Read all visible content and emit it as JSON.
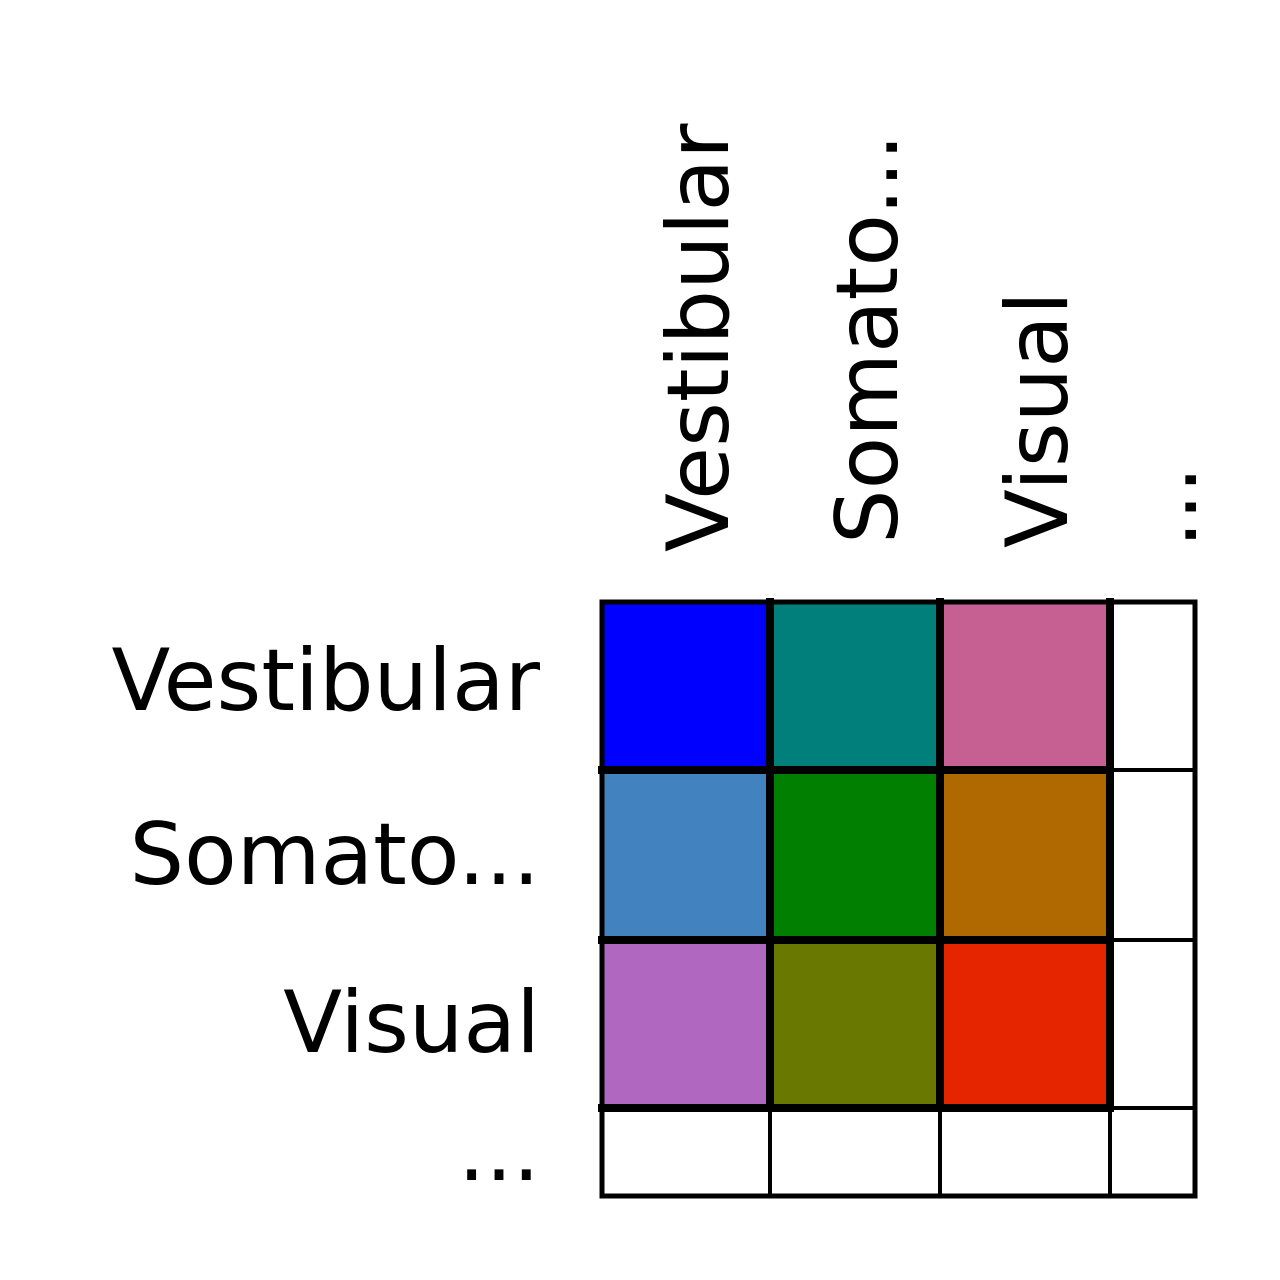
{
  "row_labels": [
    "Vestibular",
    "Somato...",
    "Visual",
    "..."
  ],
  "column_labels": [
    "Vestibular",
    "Somato...",
    "Visual",
    "..."
  ],
  "cells": [
    [
      "#0000ff",
      "#007f7b",
      "#c66092",
      "#ffffff"
    ],
    [
      "#4282bf",
      "#007f00",
      "#b06800",
      "#ffffff"
    ],
    [
      "#b067bf",
      "#687800",
      "#e52400",
      "#ffffff"
    ],
    [
      "#ffffff",
      "#ffffff",
      "#ffffff",
      "#ffffff"
    ]
  ],
  "grid_color": "#000000"
}
